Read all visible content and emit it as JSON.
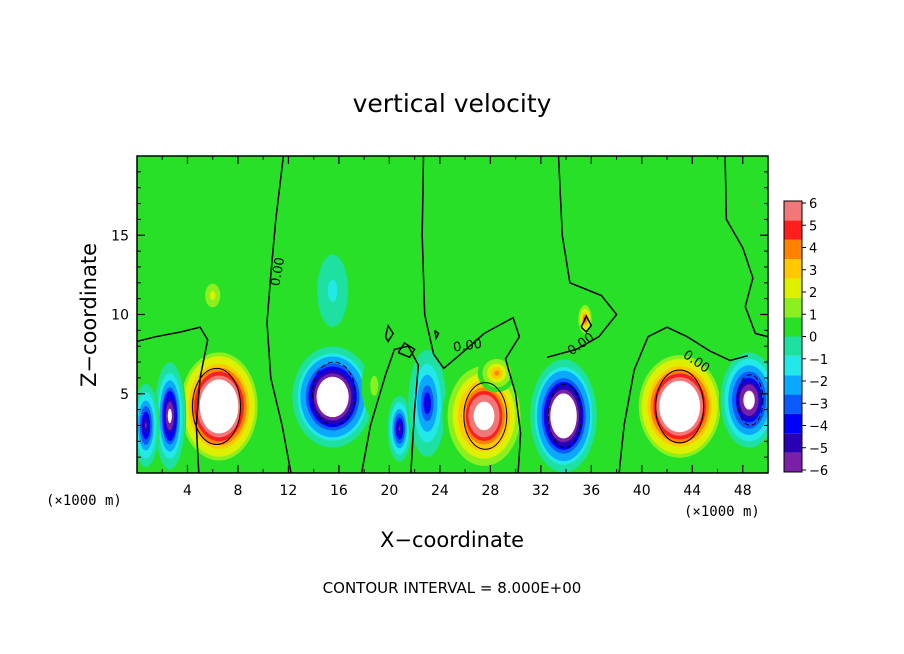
{
  "chart_data": {
    "type": "heatmap",
    "title": "vertical velocity",
    "xlabel": "X−coordinate",
    "ylabel": "Z−coordinate",
    "x_unit": "(×1000 m)",
    "z_unit": "(×1000 m)",
    "xlim": [
      0,
      50
    ],
    "ylim": [
      0,
      20
    ],
    "x_ticks": [
      4,
      8,
      12,
      16,
      20,
      24,
      28,
      32,
      36,
      40,
      44,
      48
    ],
    "y_ticks": [
      5,
      10,
      15
    ],
    "colorbar": {
      "min": -6,
      "max": 6,
      "ticks": [
        6,
        5,
        4,
        3,
        2,
        1,
        0,
        -1,
        -2,
        -3,
        -4,
        -5,
        -6
      ],
      "tick_labels": [
        "6",
        "5",
        "4",
        "3",
        "2",
        "1",
        "0",
        "−1",
        "−2",
        "−3",
        "−4",
        "−5",
        "−6"
      ],
      "colors": [
        "#7a1fa8",
        "#2a00b4",
        "#0000ff",
        "#0a5aff",
        "#0aa8ff",
        "#22e8e8",
        "#1ee0a0",
        "#28e028",
        "#8cf01e",
        "#dcf000",
        "#ffc800",
        "#ff8200",
        "#ff1e1e",
        "#f07878"
      ]
    },
    "saturated_color": "#ffffff",
    "background_value": 0.15,
    "cells": [
      {
        "x": 6.5,
        "z": 4.2,
        "rx": 3.5,
        "rz": 3.9,
        "value": 14
      },
      {
        "x": 6,
        "z": 11.2,
        "rx": 1.2,
        "rz": 1.5,
        "value": 2.3
      },
      {
        "x": 2.6,
        "z": 3.6,
        "rx": 1.3,
        "rz": 3.6,
        "value": -8
      },
      {
        "x": 0.7,
        "z": 3.0,
        "rx": 1.1,
        "rz": 2.8,
        "value": -6
      },
      {
        "x": 15.5,
        "z": 4.8,
        "rx": 3.4,
        "rz": 3.4,
        "value": -12
      },
      {
        "x": 15.5,
        "z": 11.5,
        "rx": 1.5,
        "rz": 2.8,
        "value": -1.4
      },
      {
        "x": 20.8,
        "z": 2.8,
        "rx": 1.0,
        "rz": 2.2,
        "value": -6
      },
      {
        "x": 18.8,
        "z": 5.5,
        "rx": 1.0,
        "rz": 2.0,
        "value": 1.4
      },
      {
        "x": 23.0,
        "z": 4.4,
        "rx": 1.6,
        "rz": 3.6,
        "value": -5
      },
      {
        "x": 27.5,
        "z": 3.6,
        "rx": 3.3,
        "rz": 3.6,
        "value": 10
      },
      {
        "x": 28.5,
        "z": 6.3,
        "rx": 1.5,
        "rz": 1.2,
        "value": 4.5
      },
      {
        "x": 33.8,
        "z": 3.6,
        "rx": 2.8,
        "rz": 3.8,
        "value": -12
      },
      {
        "x": 35.5,
        "z": 9.7,
        "rx": 0.7,
        "rz": 1.2,
        "value": 5.5
      },
      {
        "x": 43.0,
        "z": 4.2,
        "rx": 3.7,
        "rz": 3.7,
        "value": 14
      },
      {
        "x": 48.5,
        "z": 4.6,
        "rx": 2.4,
        "rz": 3.2,
        "value": -9
      },
      {
        "x": 41.0,
        "z": 13.5,
        "rx": 4.0,
        "rz": 3.0,
        "value": 0.9
      },
      {
        "x": 10.0,
        "z": 16.5,
        "rx": 4.0,
        "rz": 3.0,
        "value": 0.7
      },
      {
        "x": 30.0,
        "z": 15.0,
        "rx": 5.0,
        "rz": 3.5,
        "value": 0.5
      }
    ],
    "contour_labels": [
      {
        "text": "0.00",
        "x": 11.2,
        "z": 12.7,
        "angle": -80
      },
      {
        "text": "0.00",
        "x": 26.2,
        "z": 8.0,
        "angle": -8
      },
      {
        "text": "0.00",
        "x": 35.2,
        "z": 8.1,
        "angle": -35
      },
      {
        "text": "0.00",
        "x": 44.3,
        "z": 7.0,
        "angle": 35
      }
    ],
    "footer": "CONTOUR INTERVAL = 8.000E+00"
  }
}
